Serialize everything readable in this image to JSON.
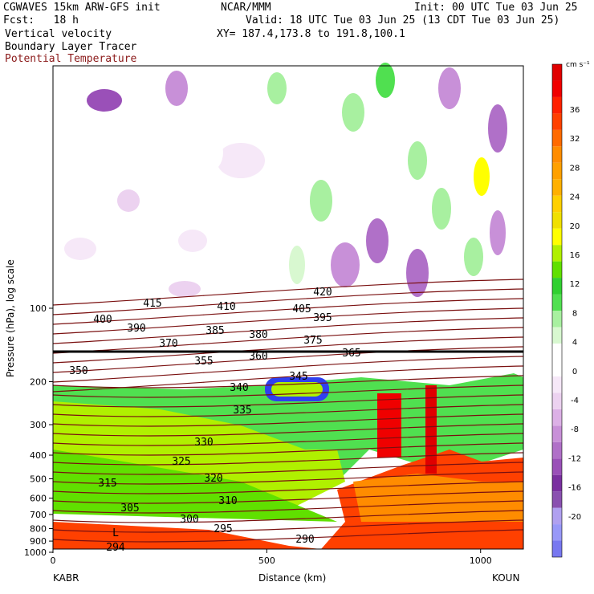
{
  "header": {
    "model": "CGWAVES 15km ARW-GFS init",
    "center": "NCAR/MMM",
    "init": "Init: 00 UTC Tue 03 Jun 25",
    "fcst": "Fcst:   18 h",
    "valid": "Valid: 18 UTC Tue 03 Jun 25 (13 CDT Tue 03 Jun 25)",
    "field1": "Vertical velocity",
    "field2": "Boundary Layer Tracer",
    "field3": "Potential Temperature",
    "xy": "XY= 187.4,173.8 to 191.8,100.1"
  },
  "colors": {
    "theta_contour": "#7a1010",
    "pbl_line": "#000000",
    "title_maroon": "#8b1a1a"
  },
  "chart_data": {
    "type": "heatmap",
    "xlabel": "Distance (km)",
    "ylabel": "Pressure (hPa), log scale",
    "xlim": [
      0,
      1100
    ],
    "x_ticks": [
      0,
      500,
      1000
    ],
    "y_ticks": [
      100,
      200,
      300,
      400,
      500,
      600,
      700,
      800,
      900,
      1000
    ],
    "y_scale": "log",
    "left_station": "KABR",
    "right_station": "KOUN",
    "colorbar": {
      "unit": "cm s⁻¹",
      "tick_labels": [
        "36",
        "32",
        "28",
        "24",
        "20",
        "16",
        "12",
        "8",
        "4",
        "0",
        "-4",
        "-8",
        "-12",
        "-16",
        "-20"
      ],
      "levels": [
        -22,
        -20,
        -18,
        -16,
        -14,
        -12,
        -10,
        -8,
        -6,
        -4,
        -2,
        0,
        2,
        4,
        6,
        8,
        10,
        12,
        14,
        16,
        18,
        20,
        22,
        24,
        26,
        28,
        30,
        32,
        34,
        36,
        38,
        40
      ],
      "colors": [
        "#7878f0",
        "#9898f8",
        "#b0a0f0",
        "#8a50b0",
        "#7a30a0",
        "#9a50b8",
        "#b070c8",
        "#c890d8",
        "#dcb0e6",
        "#ecd2f0",
        "#f6e8f8",
        "#ffffff",
        "#ffffff",
        "#d8f8d0",
        "#a8f0a0",
        "#50e050",
        "#30d030",
        "#60e000",
        "#b0f000",
        "#ffff00",
        "#f0e000",
        "#ffd000",
        "#ffb000",
        "#ffa000",
        "#ff8c00",
        "#ff6a00",
        "#ff4000",
        "#ff2000",
        "#f00000",
        "#e00000"
      ]
    },
    "theta_labels": [
      "415",
      "410",
      "405",
      "400",
      "390",
      "385",
      "380",
      "370",
      "355",
      "360",
      "365",
      "375",
      "395",
      "420",
      "350",
      "345",
      "340",
      "335",
      "330",
      "325",
      "320",
      "315",
      "310",
      "305",
      "300",
      "295",
      "294",
      "290",
      "L"
    ],
    "annotation_levels_k": [
      294,
      295,
      300,
      305,
      310,
      315,
      320,
      325,
      330,
      335,
      340,
      345,
      350,
      355,
      360,
      365,
      370,
      375,
      380,
      385,
      390,
      395,
      400,
      405,
      410,
      415,
      420
    ],
    "pbl_top_hPa": 155,
    "grid": false,
    "legend": "right"
  }
}
